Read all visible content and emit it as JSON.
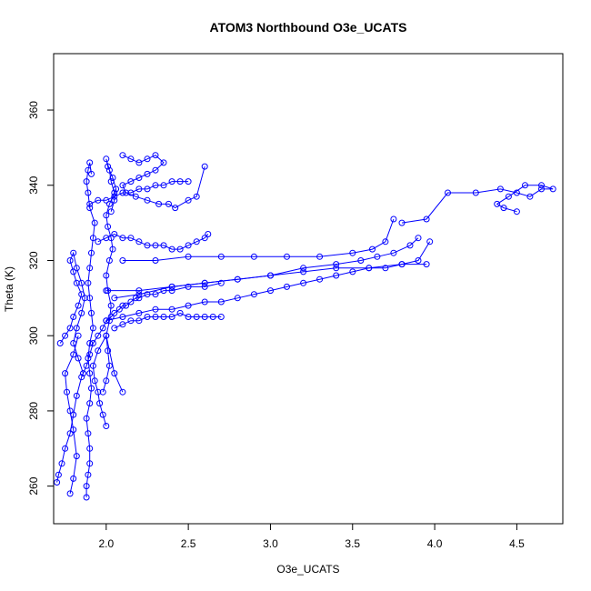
{
  "chart_data": {
    "type": "line",
    "title": "ATOM3 Northbound O3e_UCATS",
    "xlabel": "O3e_UCATS",
    "ylabel": "Theta (K)",
    "xlim": [
      1.68,
      4.78
    ],
    "ylim": [
      250,
      375
    ],
    "xticks": [
      2.0,
      2.5,
      3.0,
      3.5,
      4.0,
      4.5
    ],
    "xtick_labels": [
      "2.0",
      "2.5",
      "3.0",
      "3.5",
      "4.0",
      "4.5"
    ],
    "yticks": [
      260,
      280,
      300,
      320,
      340,
      360
    ],
    "ytick_labels": [
      "260",
      "280",
      "300",
      "320",
      "340",
      "360"
    ],
    "grid": false,
    "legend": "none",
    "marker": "open-circle",
    "color": "#0000ff",
    "series": [
      {
        "values_note": "",
        "x": [
          1.7,
          1.71,
          1.73,
          1.75,
          1.78,
          1.8,
          1.82,
          1.85,
          1.88,
          1.9,
          1.92,
          1.95,
          1.98,
          2.0,
          2.03,
          2.05,
          2.08,
          2.1,
          2.12,
          2.15,
          2.18,
          2.2,
          2.25,
          2.3,
          2.35,
          2.4,
          2.5,
          2.6,
          2.7
        ],
        "y": [
          261,
          263,
          266,
          270,
          274,
          279,
          284,
          289,
          292,
          295,
          298,
          300,
          302,
          304,
          305,
          306,
          307,
          308,
          308,
          309,
          310,
          310,
          311,
          311,
          312,
          312,
          313,
          313,
          314
        ]
      },
      {
        "x": [
          1.88,
          1.88,
          1.89,
          1.9,
          1.9,
          1.89,
          1.88,
          1.9,
          1.91,
          1.9,
          1.89,
          1.9,
          1.92,
          1.91,
          1.9,
          1.89,
          1.9,
          1.91,
          1.92,
          1.93,
          1.9,
          1.89,
          1.88,
          1.89,
          1.9,
          1.91
        ],
        "y": [
          257,
          260,
          263,
          266,
          270,
          274,
          278,
          282,
          286,
          290,
          294,
          298,
          302,
          306,
          310,
          314,
          318,
          322,
          326,
          330,
          334,
          338,
          341,
          344,
          346,
          343
        ]
      },
      {
        "x": [
          1.98,
          2.0,
          2.02,
          2.01,
          2.0,
          2.02,
          2.03,
          2.01,
          2.0,
          2.02,
          2.04,
          2.03,
          2.01,
          2.0,
          2.02,
          2.05,
          2.03,
          2.02,
          2.0,
          2.01,
          2.04,
          2.06,
          2.05,
          2.03
        ],
        "y": [
          285,
          288,
          292,
          296,
          300,
          304,
          308,
          312,
          316,
          320,
          323,
          326,
          329,
          332,
          335,
          338,
          341,
          344,
          347,
          345,
          342,
          339,
          336,
          333
        ]
      },
      {
        "x": [
          1.72,
          1.75,
          1.78,
          1.8,
          1.83,
          1.85,
          1.82,
          1.8,
          1.78,
          1.8,
          1.82,
          1.85,
          1.87,
          1.85,
          1.82,
          1.8,
          1.83,
          1.86
        ],
        "y": [
          298,
          300,
          302,
          305,
          308,
          311,
          314,
          317,
          320,
          322,
          318,
          314,
          310,
          306,
          302,
          298,
          294,
          290
        ]
      },
      {
        "x": [
          2.1,
          2.15,
          2.2,
          2.25,
          2.3,
          2.35,
          2.3,
          2.25,
          2.2,
          2.15,
          2.1,
          2.12,
          2.18,
          2.25,
          2.32,
          2.38,
          2.42,
          2.5,
          2.55,
          2.6
        ],
        "y": [
          348,
          347,
          346,
          347,
          348,
          346,
          344,
          343,
          342,
          341,
          340,
          338,
          337,
          336,
          335,
          335,
          334,
          336,
          337,
          345
        ]
      },
      {
        "x": [
          2.0,
          2.1,
          2.2,
          2.3,
          2.4,
          2.5,
          2.6,
          2.7,
          2.8,
          2.9,
          3.0,
          3.1,
          3.2,
          3.3,
          3.4,
          3.5,
          3.6,
          3.7,
          3.8,
          3.9,
          3.97
        ],
        "y": [
          304,
          305,
          306,
          307,
          307,
          308,
          309,
          309,
          310,
          311,
          312,
          313,
          314,
          315,
          316,
          317,
          318,
          318,
          319,
          320,
          325
        ]
      },
      {
        "x": [
          2.05,
          2.2,
          2.4,
          2.6,
          2.8,
          3.0,
          3.2,
          3.4,
          3.55,
          3.65,
          3.75,
          3.85,
          3.9
        ],
        "y": [
          310,
          311,
          313,
          314,
          315,
          316,
          318,
          319,
          320,
          321,
          322,
          324,
          326
        ]
      },
      {
        "x": [
          2.1,
          2.3,
          2.5,
          2.7,
          2.9,
          3.1,
          3.3,
          3.5,
          3.62,
          3.7,
          3.75
        ],
        "y": [
          320,
          320,
          321,
          321,
          321,
          321,
          321,
          322,
          323,
          325,
          331
        ]
      },
      {
        "x": [
          2.0,
          2.2,
          2.4,
          2.6,
          2.8,
          3.0,
          3.2,
          3.4,
          3.6,
          3.8,
          3.95
        ],
        "y": [
          312,
          312,
          313,
          314,
          315,
          316,
          317,
          318,
          318,
          319,
          319
        ]
      },
      {
        "x": [
          3.8,
          3.95,
          4.08,
          4.25,
          4.4,
          4.5,
          4.58,
          4.65,
          4.72,
          4.65,
          4.55,
          4.45,
          4.38,
          4.42,
          4.5
        ],
        "y": [
          330,
          331,
          338,
          338,
          339,
          338,
          337,
          339,
          339,
          340,
          340,
          337,
          335,
          334,
          333
        ]
      },
      {
        "x": [
          2.05,
          2.1,
          2.15,
          2.2,
          2.25,
          2.3,
          2.35,
          2.4,
          2.45,
          2.5,
          2.55,
          2.6,
          2.65,
          2.7
        ],
        "y": [
          302,
          303,
          304,
          304,
          305,
          305,
          305,
          305,
          306,
          305,
          305,
          305,
          305,
          305
        ]
      },
      {
        "x": [
          1.95,
          2.0,
          2.05,
          2.1,
          2.15,
          2.2,
          2.25,
          2.3,
          2.35,
          2.4,
          2.45,
          2.5,
          2.55,
          2.6,
          2.62
        ],
        "y": [
          325,
          326,
          327,
          326,
          326,
          325,
          324,
          324,
          324,
          323,
          323,
          324,
          325,
          326,
          327
        ]
      },
      {
        "x": [
          1.9,
          1.95,
          2.0,
          2.05,
          2.1,
          2.15,
          2.2,
          2.25,
          2.3,
          2.35,
          2.4,
          2.45,
          2.5
        ],
        "y": [
          335,
          336,
          336,
          337,
          338,
          338,
          339,
          339,
          340,
          340,
          341,
          341,
          341
        ]
      },
      {
        "x": [
          2.0,
          1.98,
          1.96,
          1.95,
          1.93,
          1.92,
          1.95,
          2.0,
          2.05,
          2.1
        ],
        "y": [
          276,
          279,
          282,
          285,
          288,
          292,
          296,
          300,
          290,
          285
        ]
      },
      {
        "x": [
          1.78,
          1.8,
          1.82,
          1.8,
          1.78,
          1.76,
          1.75,
          1.8,
          1.83
        ],
        "y": [
          258,
          262,
          268,
          275,
          280,
          285,
          290,
          295,
          300
        ]
      }
    ]
  }
}
